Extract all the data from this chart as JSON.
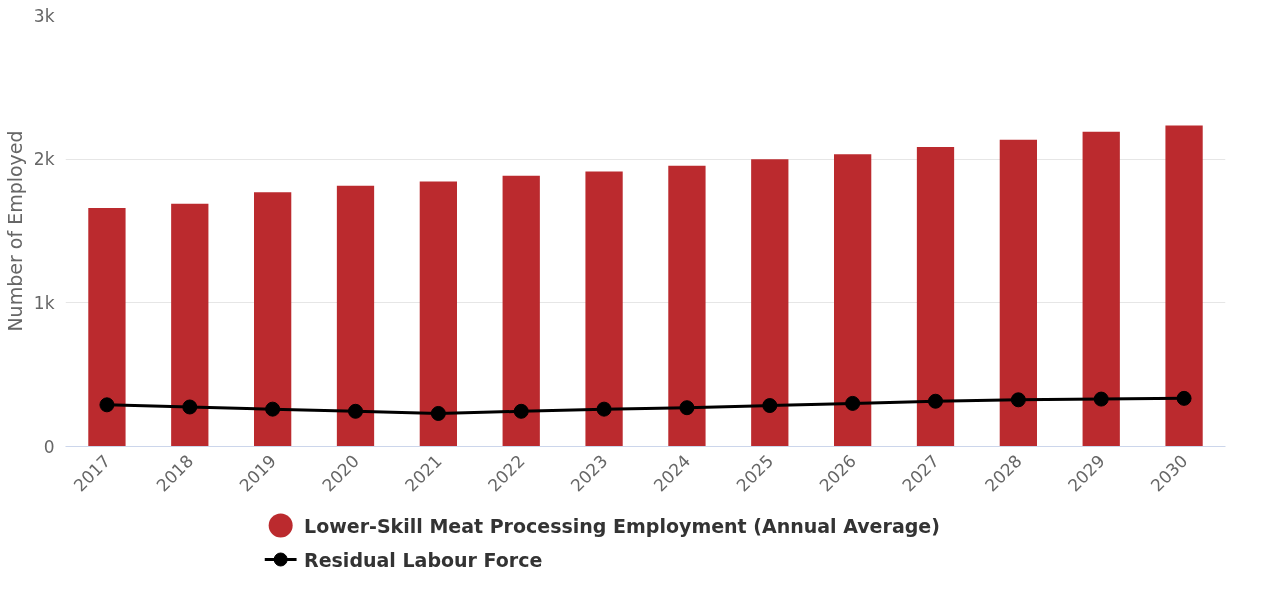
{
  "chart_data": {
    "type": "bar",
    "ylabel": "Number of Employed",
    "categories": [
      "2017",
      "2018",
      "2019",
      "2020",
      "2021",
      "2022",
      "2023",
      "2024",
      "2025",
      "2026",
      "2027",
      "2028",
      "2029",
      "2030"
    ],
    "series": [
      {
        "name": "Lower-Skill Meat Processing Employment (Annual Average)",
        "color": "#bb2a2e",
        "values": [
          1660,
          1690,
          1770,
          1815,
          1845,
          1885,
          1915,
          1955,
          2000,
          2035,
          2085,
          2135,
          2190,
          2235
        ]
      },
      {
        "name": "Residual Labour Force",
        "type": "line",
        "color": "#000000",
        "marker": "circle",
        "values": [
          290,
          275,
          260,
          245,
          230,
          245,
          260,
          270,
          285,
          300,
          315,
          325,
          330,
          335
        ]
      }
    ],
    "ylim": [
      0,
      3000
    ],
    "yticks": [
      {
        "value": 0,
        "label": "0"
      },
      {
        "value": 1000,
        "label": "1k"
      },
      {
        "value": 2000,
        "label": "2k"
      },
      {
        "value": 3000,
        "label": "3k"
      }
    ],
    "grid": "y",
    "legend": "bottom"
  }
}
